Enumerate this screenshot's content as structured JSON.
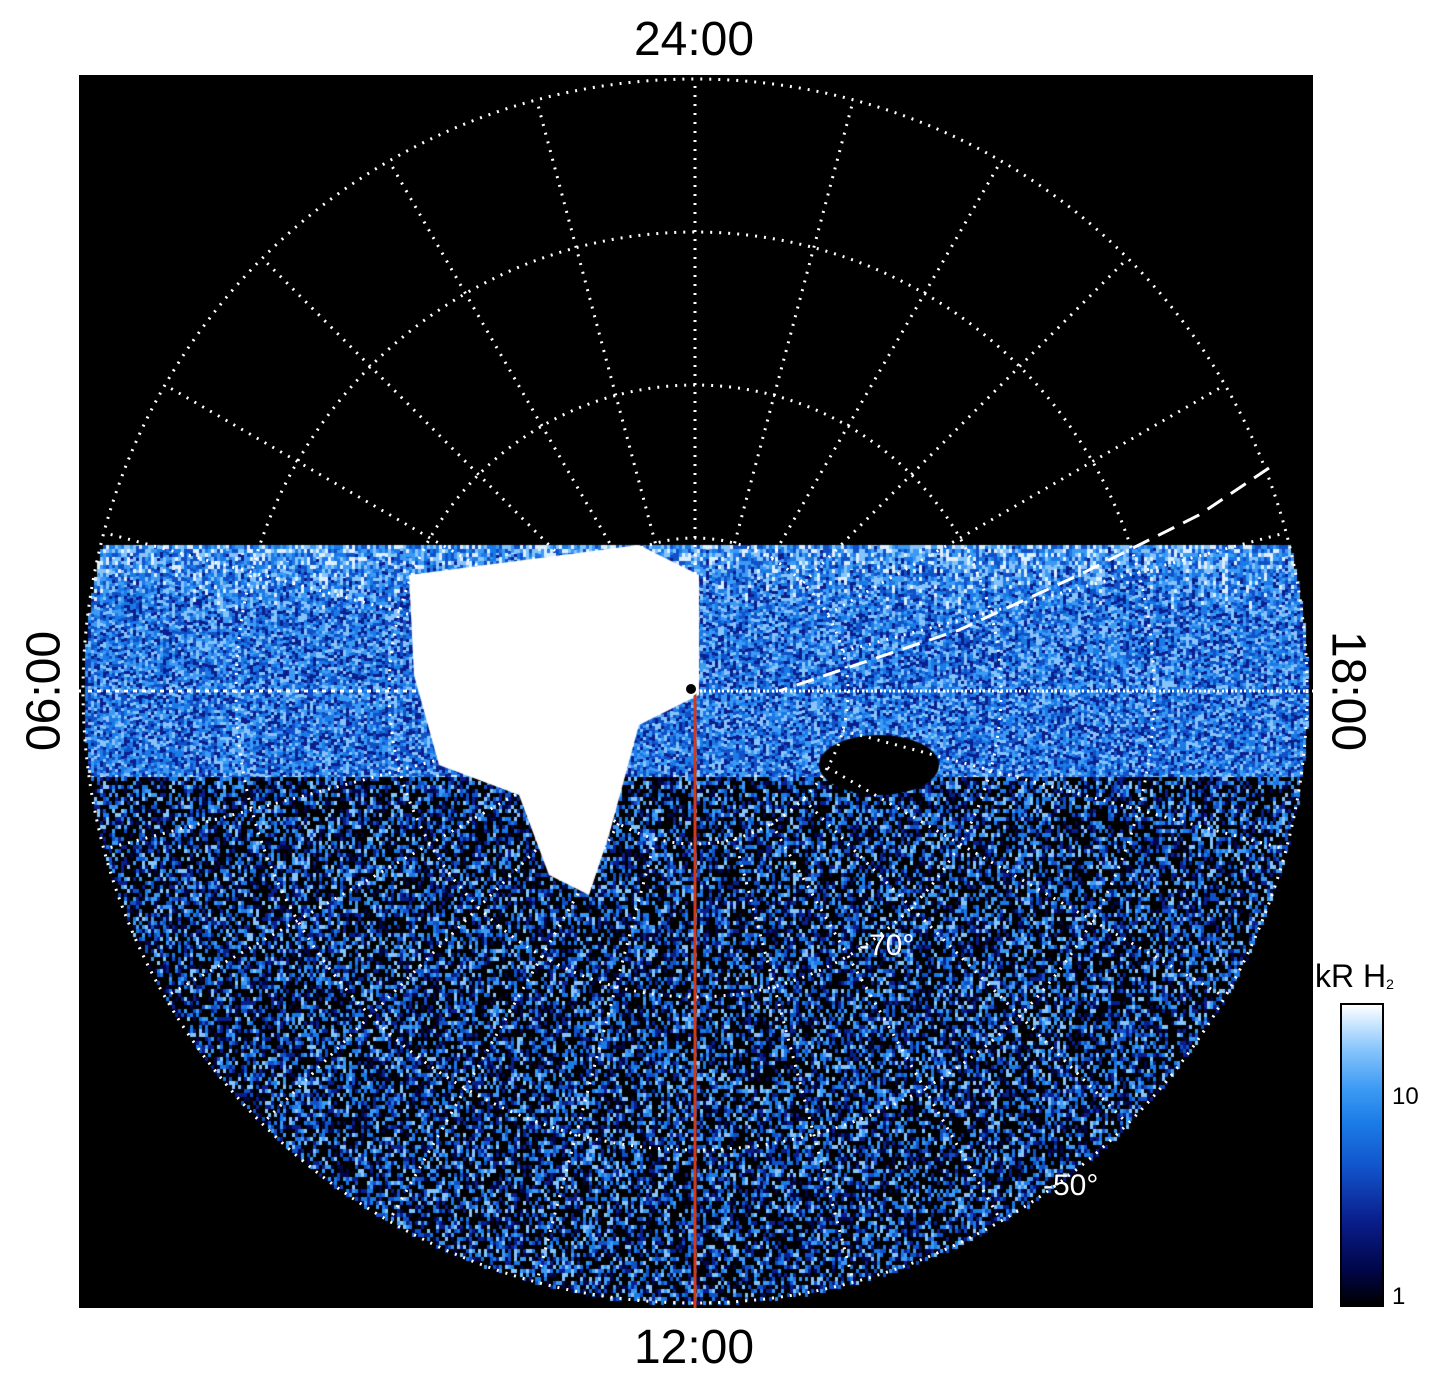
{
  "map": {
    "local_time_labels": {
      "top": "24:00",
      "bottom": "12:00",
      "left": "06:00",
      "right": "18:00"
    },
    "latitude_labels": [
      "-70°",
      "-50°"
    ],
    "grid_latitudes_deg": [
      -90,
      -80,
      -70,
      -60,
      -50
    ],
    "meridian_step_hours": 1,
    "colorbar": {
      "title": "kR H",
      "title_subscript": "2",
      "ticks": [
        "10",
        "1"
      ],
      "scale": "log",
      "colors": [
        "#000000",
        "#00064a",
        "#0a1e8c",
        "#1151c8",
        "#1a7ae6",
        "#3c9af4",
        "#86c4fb",
        "#ffffff"
      ]
    },
    "colors": {
      "background": "#000000",
      "grid": "#ffffff",
      "meridian_line": "#d03a1a"
    }
  }
}
